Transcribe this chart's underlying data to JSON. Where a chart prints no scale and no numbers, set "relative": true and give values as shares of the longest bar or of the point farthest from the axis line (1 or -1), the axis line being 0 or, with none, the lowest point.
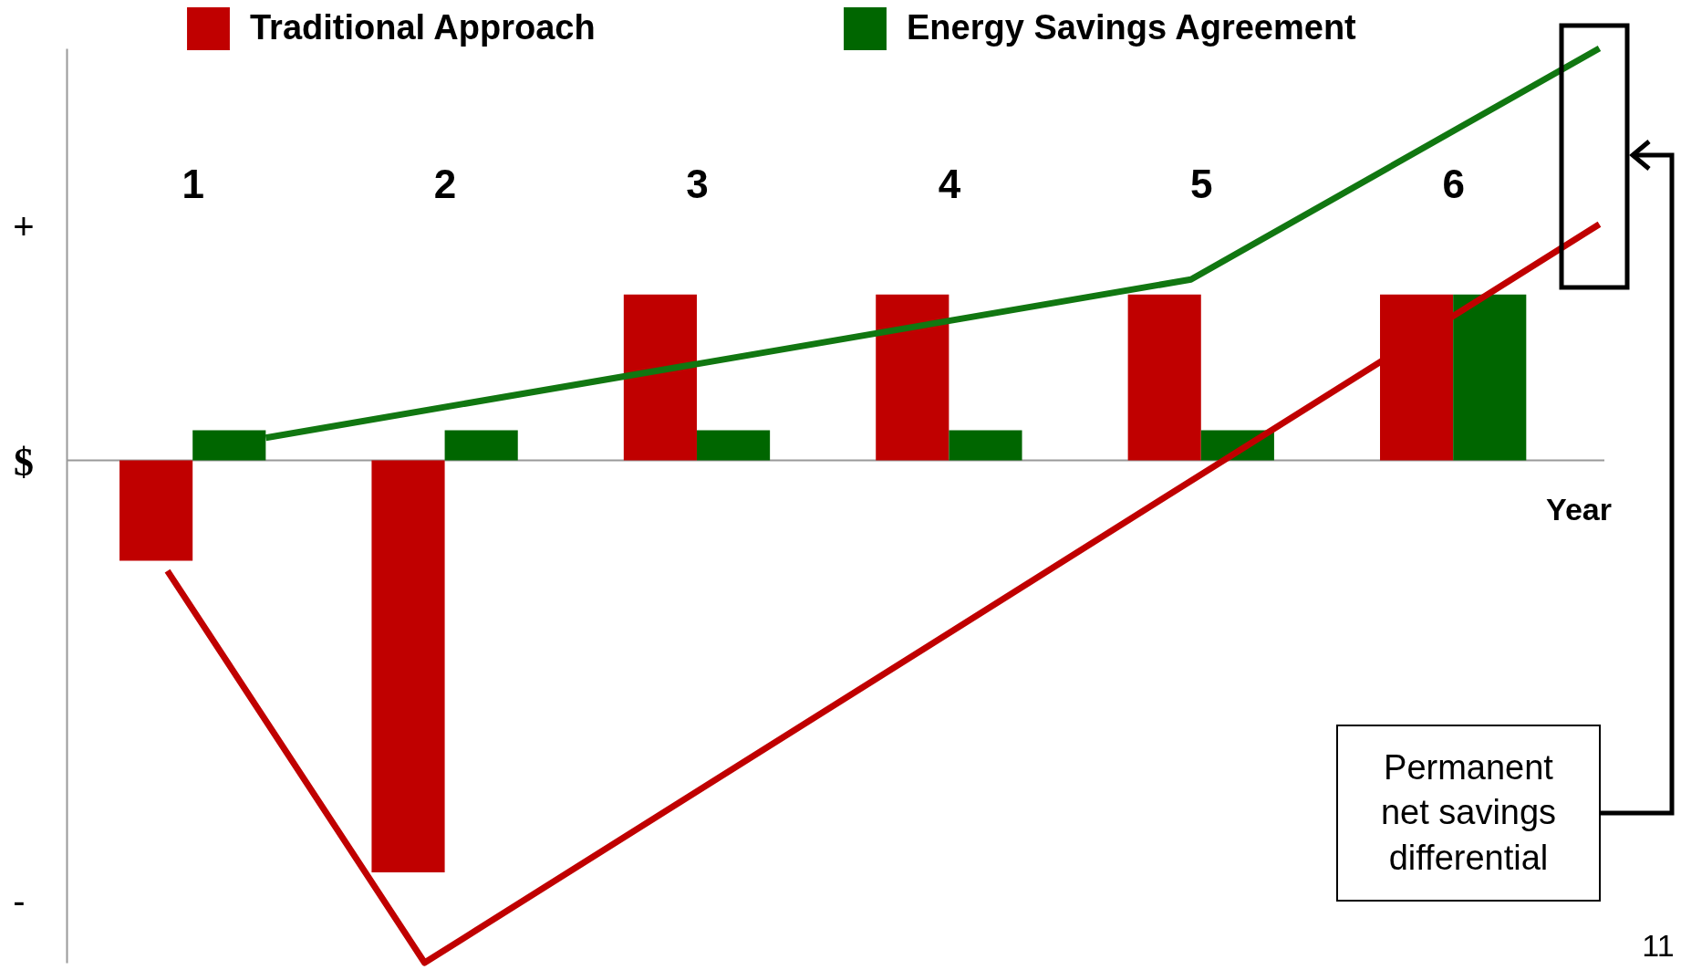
{
  "chart_data": {
    "type": "bar",
    "relative": true,
    "xlabel": "Year",
    "x": [
      1,
      2,
      3,
      4,
      5,
      6
    ],
    "xlim": [
      0.5,
      6.6
    ],
    "xticks": [
      1,
      2,
      3,
      4,
      5,
      6
    ],
    "series": [
      {
        "name": "Traditional Approach",
        "color": "#c00000",
        "values": [
          -0.2,
          -0.82,
          0.33,
          0.33,
          0.33,
          0.33
        ]
      },
      {
        "name": "Energy Savings Agreement",
        "color": "#006600",
        "values": [
          0.06,
          0.06,
          0.06,
          0.06,
          0.06,
          0.33
        ]
      },
      {
        "type": "line",
        "color": "#c00000",
        "x": [
          0.9,
          1.92,
          6.58
        ],
        "values": [
          -0.22,
          -1,
          0.47
        ]
      },
      {
        "type": "line",
        "color": "#117711",
        "x": [
          1.29,
          4.96,
          6.58
        ],
        "values": [
          0.045,
          0.36,
          0.82
        ]
      }
    ],
    "annotations": [
      "+",
      "$",
      "-",
      "Permanent net savings differential",
      "11"
    ],
    "legend": "top",
    "grid": false,
    "marker": "none",
    "line_style": "solid"
  }
}
